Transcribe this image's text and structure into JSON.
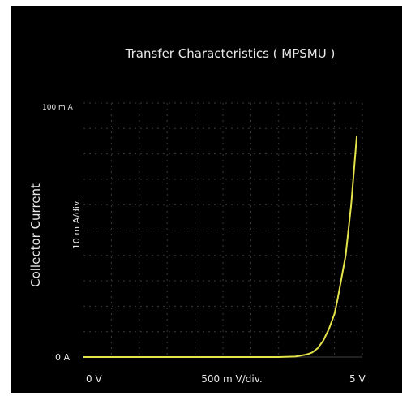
{
  "chart_data": {
    "type": "line",
    "title": "Transfer Characteristics ( MPSMU )",
    "ylabel": "Collector Current",
    "yscale_label": "10 m A/div.",
    "xscale_label": "500 m V/div.",
    "x_tick_labels": {
      "min": "0  V",
      "max": "5  V"
    },
    "y_tick_labels": {
      "min": "0  A",
      "max": "100 m A"
    },
    "xlim": [
      0,
      5
    ],
    "ylim": [
      0,
      100
    ],
    "x_unit": "V",
    "y_unit": "mA",
    "grid": true,
    "series": [
      {
        "color": "#e4e34a",
        "x": [
          0,
          1,
          2,
          3,
          3.5,
          3.8,
          4.0,
          4.1,
          4.2,
          4.3,
          4.4,
          4.5,
          4.55,
          4.6,
          4.7,
          4.8,
          4.9
        ],
        "y": [
          0,
          0,
          0,
          0,
          0,
          0.2,
          1,
          1.8,
          3.5,
          6.5,
          11,
          17,
          22,
          28,
          40,
          60,
          87
        ]
      }
    ]
  }
}
